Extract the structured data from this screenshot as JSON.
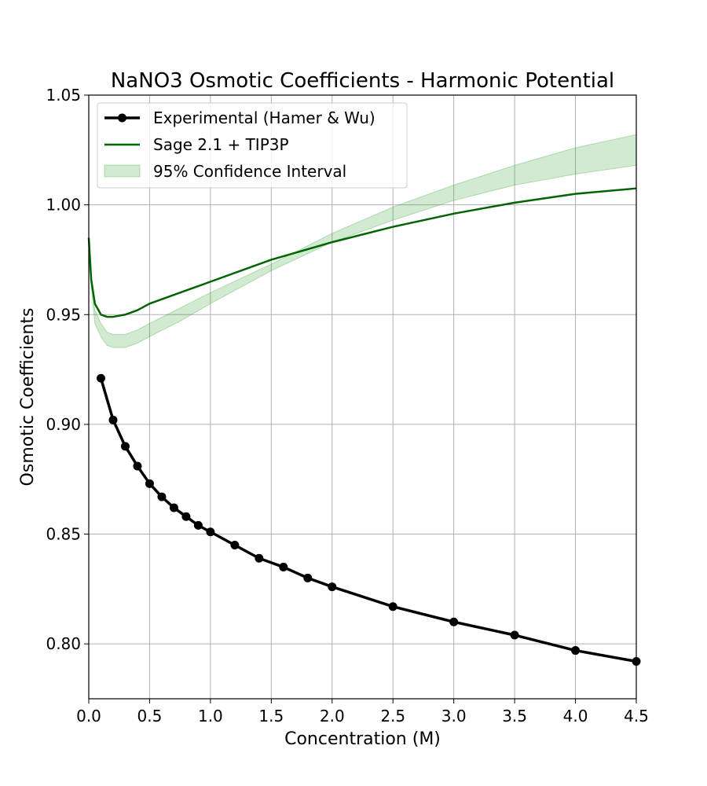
{
  "chart_data": {
    "type": "line",
    "title": "NaNO3 Osmotic Coefficients - Harmonic Potential",
    "xlabel": "Concentration (M)",
    "ylabel": "Osmotic Coefficients",
    "xlim": [
      0.0,
      4.5
    ],
    "ylim": [
      0.775,
      1.05
    ],
    "xticks": [
      "0.0",
      "0.5",
      "1.0",
      "1.5",
      "2.0",
      "2.5",
      "3.0",
      "3.5",
      "4.0",
      "4.5"
    ],
    "yticks": [
      "0.80",
      "0.85",
      "0.90",
      "0.95",
      "1.00",
      "1.05"
    ],
    "grid": true,
    "legend_position": "upper-left",
    "series": [
      {
        "name": "Experimental (Hamer & Wu)",
        "style": "line-with-markers",
        "color": "#000000",
        "x": [
          0.1,
          0.2,
          0.3,
          0.4,
          0.5,
          0.6,
          0.7,
          0.8,
          0.9,
          1.0,
          1.2,
          1.4,
          1.6,
          1.8,
          2.0,
          2.5,
          3.0,
          3.5,
          4.0,
          4.5
        ],
        "y": [
          0.921,
          0.902,
          0.89,
          0.881,
          0.873,
          0.867,
          0.862,
          0.858,
          0.854,
          0.851,
          0.845,
          0.839,
          0.835,
          0.83,
          0.826,
          0.817,
          0.81,
          0.804,
          0.797,
          0.792
        ]
      },
      {
        "name": "Sage 2.1 + TIP3P",
        "style": "line",
        "color": "#006400",
        "x": [
          0.0,
          0.02,
          0.05,
          0.1,
          0.15,
          0.2,
          0.25,
          0.3,
          0.4,
          0.5,
          0.75,
          1.0,
          1.5,
          2.0,
          2.5,
          3.0,
          3.5,
          4.0,
          4.5
        ],
        "y": [
          0.985,
          0.966,
          0.955,
          0.95,
          0.949,
          0.949,
          0.9495,
          0.95,
          0.952,
          0.955,
          0.96,
          0.965,
          0.975,
          0.983,
          0.99,
          0.996,
          1.001,
          1.005,
          1.0075
        ]
      },
      {
        "name": "95% Confidence Interval",
        "style": "band",
        "color": "#2ca02c",
        "x": [
          0.0,
          0.05,
          0.1,
          0.15,
          0.2,
          0.3,
          0.4,
          0.5,
          0.75,
          1.0,
          1.5,
          2.0,
          2.5,
          3.0,
          3.5,
          4.0,
          4.5
        ],
        "lower": [
          0.975,
          0.946,
          0.94,
          0.936,
          0.935,
          0.935,
          0.937,
          0.94,
          0.947,
          0.955,
          0.97,
          0.983,
          0.993,
          1.002,
          1.009,
          1.014,
          1.018
        ],
        "upper": [
          0.98,
          0.952,
          0.946,
          0.942,
          0.941,
          0.941,
          0.943,
          0.946,
          0.953,
          0.96,
          0.973,
          0.987,
          0.999,
          1.009,
          1.018,
          1.026,
          1.032
        ]
      }
    ]
  }
}
